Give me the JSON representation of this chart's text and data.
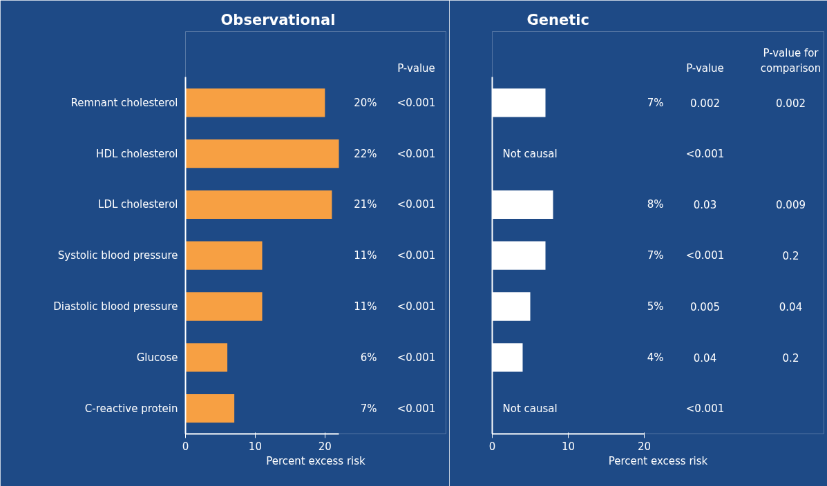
{
  "chart_data": [
    {
      "type": "bar",
      "orientation": "horizontal",
      "title": "Observational",
      "xlabel": "Percent excess risk",
      "color": "#f7a043",
      "categories": [
        "Remnant cholesterol",
        "HDL cholesterol",
        "LDL cholesterol",
        "Systolic blood pressure",
        "Diastolic blood pressure",
        "Glucose",
        "C-reactive protein"
      ],
      "values": [
        20,
        22,
        21,
        11,
        11,
        6,
        7
      ],
      "value_labels": [
        "20%",
        "22%",
        "21%",
        "11%",
        "11%",
        "6%",
        "7%"
      ],
      "xlim": [
        0,
        22
      ],
      "xticks": [
        0,
        10,
        20
      ],
      "annotations": [
        "P-value",
        "<0.001",
        "<0.001",
        "<0.001",
        "<0.001",
        "<0.001",
        "<0.001",
        "<0.001"
      ]
    },
    {
      "type": "bar",
      "orientation": "horizontal",
      "title": "Genetic",
      "xlabel": "Percent excess risk",
      "color": "#ffffff",
      "categories": [
        null,
        null,
        null,
        null,
        null,
        null,
        null
      ],
      "values": [
        7,
        null,
        8,
        7,
        5,
        4,
        null
      ],
      "value_labels": [
        "7%",
        null,
        "8%",
        "7%",
        "5%",
        "4%",
        null
      ],
      "xlim": [
        0,
        20
      ],
      "xticks": [
        0,
        10,
        20
      ],
      "annotations": [
        "P-value",
        "P-value for\ncomparison",
        "Not causal",
        "Not causal",
        "0.002",
        "0.002",
        "<0.001",
        "0.03",
        "0.009",
        "<0.001",
        "0.2",
        "0.005",
        "0.04",
        "0.04",
        "0.2",
        "<0.001"
      ]
    }
  ]
}
